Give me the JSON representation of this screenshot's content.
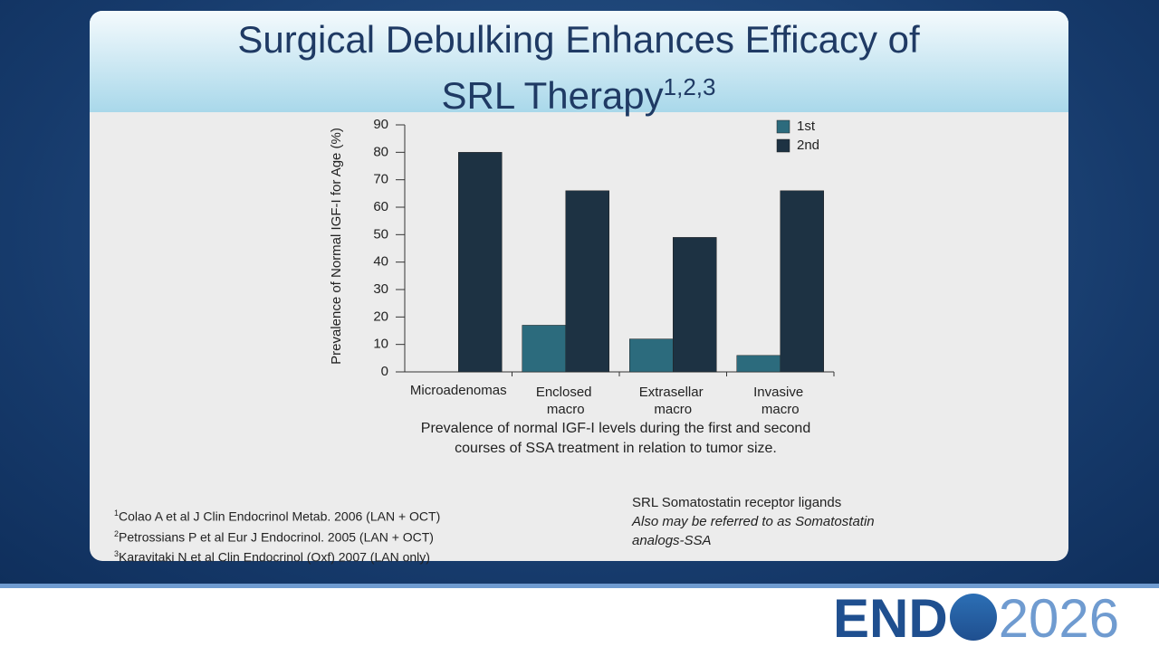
{
  "slide": {
    "title": "Surgical Debulking Enhances Efficacy of SRL Therapy",
    "title_superscript": "1,2,3",
    "references": [
      {
        "mark": "1",
        "text": "Colao A  et al J Clin Endocrinol Metab. 2006 (LAN + OCT)"
      },
      {
        "mark": "2",
        "text": "Petrossians P et al Eur J Endocrinol. 2005 (LAN + OCT)"
      },
      {
        "mark": "3",
        "text": "Karavitaki N et al Clin Endocrinol (Oxf) 2007 (LAN only)"
      }
    ],
    "note": "SRL Somatostatin receptor ligands",
    "note_italic": "Also may be referred to as Somatostatin analogs-SSA",
    "logo": {
      "left": "END",
      "right": "2026"
    }
  },
  "chart_data": {
    "type": "bar",
    "ylabel": "Prevalence of Normal IGF-I for Age (%)",
    "caption": "Prevalence of normal IGF-I levels during the first and second courses of SSA treatment in relation to tumor size.",
    "categories": [
      "Microadenomas",
      "Enclosed macro",
      "Extrasellar macro",
      "Invasive macro"
    ],
    "series": [
      {
        "name": "1st",
        "color": "#2c6b7d",
        "values": [
          0,
          17,
          12,
          6
        ]
      },
      {
        "name": "2nd",
        "color": "#1d3243",
        "values": [
          80,
          66,
          49,
          66
        ]
      }
    ],
    "ylim": [
      0,
      90
    ],
    "yticks": [
      0,
      10,
      20,
      30,
      40,
      50,
      60,
      70,
      80,
      90
    ],
    "legend": "top-right"
  }
}
